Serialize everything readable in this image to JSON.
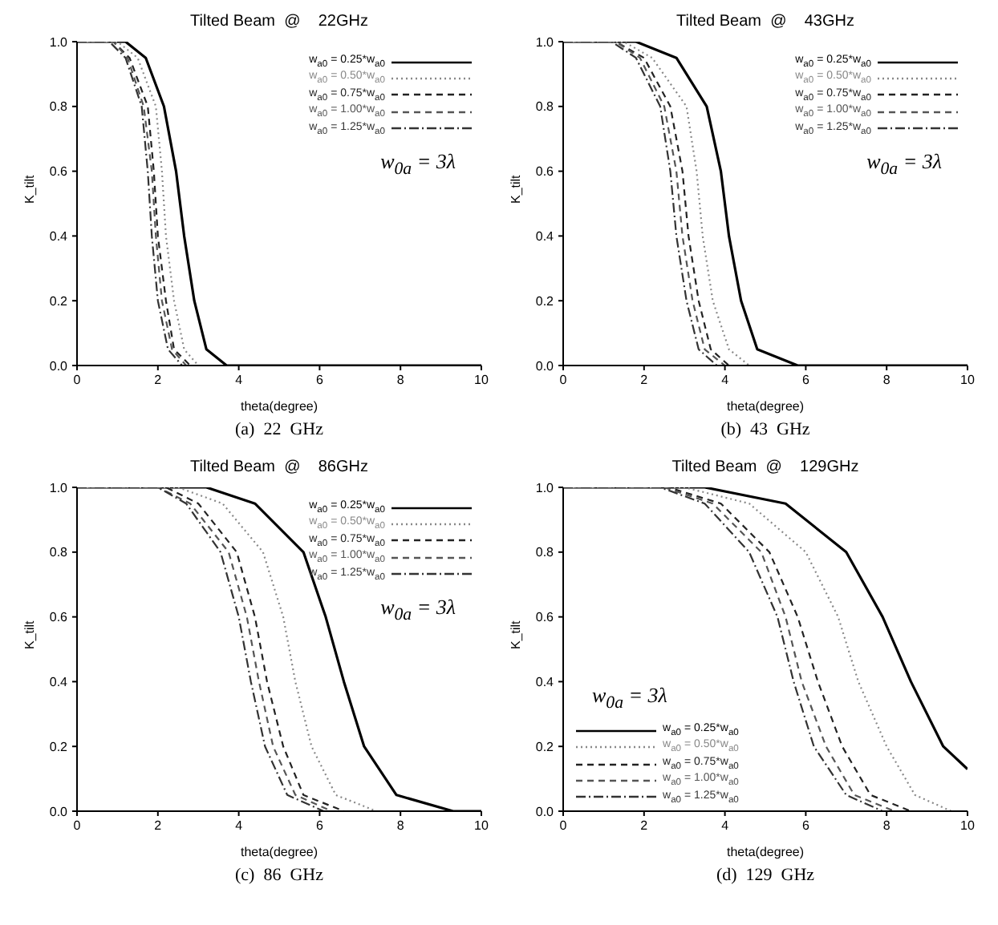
{
  "chart_data": [
    {
      "type": "line",
      "title": "Tilted Beam  @    22GHz",
      "xlabel": "theta(degree)",
      "ylabel": "K_tilt",
      "xlim": [
        0,
        10
      ],
      "ylim": [
        0,
        1.0
      ],
      "xticks": [
        0,
        2,
        4,
        6,
        8,
        10
      ],
      "yticks": [
        {
          "value": 0,
          "label": "0.0"
        },
        {
          "value": 0.2,
          "label": "0.2"
        },
        {
          "value": 0.4,
          "label": "0.4"
        },
        {
          "value": 0.6,
          "label": "0.6"
        },
        {
          "value": 0.8,
          "label": "0.8"
        },
        {
          "value": 1.0,
          "label": "1.0"
        }
      ],
      "legend": "top right",
      "annotations": [
        "w$_{0a}$ = 3λ",
        "(a)  22  GHz"
      ],
      "series": [
        {
          "name": "w$_{a0}$ = 0.25*w$_{a0}$",
          "color": "#000000",
          "line_style": "solid",
          "x": [
            0,
            1.2,
            1.7,
            2.15,
            2.45,
            2.65,
            2.9,
            3.2,
            3.7,
            10
          ],
          "values": [
            1.0,
            1.0,
            0.95,
            0.8,
            0.6,
            0.4,
            0.2,
            0.05,
            0.0,
            0.0
          ]
        },
        {
          "name": "w$_{a0}$ = 0.50*w$_{a0}$",
          "color": "#888888",
          "line_style": "dotted",
          "x": [
            0,
            1.0,
            1.5,
            1.95,
            2.1,
            2.2,
            2.4,
            2.65,
            3.0,
            10
          ],
          "values": [
            1.0,
            1.0,
            0.95,
            0.8,
            0.6,
            0.4,
            0.2,
            0.05,
            0.0,
            0.0
          ]
        },
        {
          "name": "w$_{a0}$ = 0.75*w$_{a0}$",
          "color": "#222222",
          "line_style": "dashed",
          "x": [
            0,
            0.9,
            1.3,
            1.75,
            1.9,
            2.0,
            2.2,
            2.4,
            2.8,
            10
          ],
          "values": [
            1.0,
            1.0,
            0.95,
            0.8,
            0.6,
            0.4,
            0.2,
            0.05,
            0.0,
            0.0
          ]
        },
        {
          "name": "w$_{a0}$ = 1.00*w$_{a0}$",
          "color": "#555555",
          "line_style": "dashed",
          "x": [
            0,
            0.9,
            1.25,
            1.65,
            1.85,
            1.95,
            2.1,
            2.35,
            2.7,
            10
          ],
          "values": [
            1.0,
            1.0,
            0.95,
            0.8,
            0.6,
            0.4,
            0.2,
            0.05,
            0.0,
            0.0
          ]
        },
        {
          "name": "w$_{a0}$ = 1.25*w$_{a0}$",
          "color": "#333333",
          "line_style": "dashdot",
          "x": [
            0,
            0.8,
            1.2,
            1.6,
            1.75,
            1.85,
            2.0,
            2.25,
            2.6,
            10
          ],
          "values": [
            1.0,
            1.0,
            0.95,
            0.8,
            0.6,
            0.4,
            0.2,
            0.05,
            0.0,
            0.0
          ]
        }
      ]
    },
    {
      "type": "line",
      "title": "Tilted Beam  @    43GHz",
      "xlabel": "theta(degree)",
      "ylabel": "K_tilt",
      "xlim": [
        0,
        10
      ],
      "ylim": [
        0,
        1.0
      ],
      "xticks": [
        0,
        2,
        4,
        6,
        8,
        10
      ],
      "yticks": [
        {
          "value": 0,
          "label": "0.0"
        },
        {
          "value": 0.2,
          "label": "0.2"
        },
        {
          "value": 0.4,
          "label": "0.4"
        },
        {
          "value": 0.6,
          "label": "0.6"
        },
        {
          "value": 0.8,
          "label": "0.8"
        },
        {
          "value": 1.0,
          "label": "1.0"
        }
      ],
      "legend": "top right",
      "annotations": [
        "w$_{0a}$ = 3λ",
        "(b)  43  GHz"
      ],
      "series": [
        {
          "name": "w$_{a0}$ = 0.25*w$_{a0}$",
          "color": "#000000",
          "line_style": "solid",
          "x": [
            0,
            1.8,
            2.8,
            3.55,
            3.9,
            4.1,
            4.4,
            4.8,
            5.8,
            10
          ],
          "values": [
            1.0,
            1.0,
            0.95,
            0.8,
            0.6,
            0.4,
            0.2,
            0.05,
            0.0,
            0.0
          ]
        },
        {
          "name": "w$_{a0}$ = 0.50*w$_{a0}$",
          "color": "#888888",
          "line_style": "dotted",
          "x": [
            0,
            1.5,
            2.2,
            3.05,
            3.3,
            3.45,
            3.7,
            4.1,
            4.6,
            10
          ],
          "values": [
            1.0,
            1.0,
            0.95,
            0.8,
            0.6,
            0.4,
            0.2,
            0.05,
            0.0,
            0.0
          ]
        },
        {
          "name": "w$_{a0}$ = 0.75*w$_{a0}$",
          "color": "#222222",
          "line_style": "dashed",
          "x": [
            0,
            1.3,
            2.0,
            2.65,
            2.95,
            3.1,
            3.35,
            3.65,
            4.1,
            10
          ],
          "values": [
            1.0,
            1.0,
            0.95,
            0.8,
            0.6,
            0.4,
            0.2,
            0.05,
            0.0,
            0.0
          ]
        },
        {
          "name": "w$_{a0}$ = 1.00*w$_{a0}$",
          "color": "#555555",
          "line_style": "dashed",
          "x": [
            0,
            1.3,
            1.9,
            2.5,
            2.8,
            2.95,
            3.2,
            3.5,
            4.0,
            10
          ],
          "values": [
            1.0,
            1.0,
            0.95,
            0.8,
            0.6,
            0.4,
            0.2,
            0.05,
            0.0,
            0.0
          ]
        },
        {
          "name": "w$_{a0}$ = 1.25*w$_{a0}$",
          "color": "#333333",
          "line_style": "dashdot",
          "x": [
            0,
            1.2,
            1.8,
            2.4,
            2.65,
            2.8,
            3.05,
            3.35,
            3.8,
            10
          ],
          "values": [
            1.0,
            1.0,
            0.95,
            0.8,
            0.6,
            0.4,
            0.2,
            0.05,
            0.0,
            0.0
          ]
        }
      ]
    },
    {
      "type": "line",
      "title": "Tilted Beam  @    86GHz",
      "xlabel": "theta(degree)",
      "ylabel": "K_tilt",
      "xlim": [
        0,
        10
      ],
      "ylim": [
        0,
        1.0
      ],
      "xticks": [
        0,
        2,
        4,
        6,
        8,
        10
      ],
      "yticks": [
        {
          "value": 0,
          "label": "0.0"
        },
        {
          "value": 0.2,
          "label": "0.2"
        },
        {
          "value": 0.4,
          "label": "0.4"
        },
        {
          "value": 0.6,
          "label": "0.6"
        },
        {
          "value": 0.8,
          "label": "0.8"
        },
        {
          "value": 1.0,
          "label": "1.0"
        }
      ],
      "legend": "top right",
      "annotations": [
        "w$_{0a}$ = 3λ",
        "(c)  86  GHz"
      ],
      "series": [
        {
          "name": "w$_{a0}$ = 0.25*w$_{a0}$",
          "color": "#000000",
          "line_style": "solid",
          "x": [
            0,
            3.2,
            4.4,
            5.6,
            6.15,
            6.6,
            7.1,
            7.9,
            9.3,
            10
          ],
          "values": [
            1.0,
            1.0,
            0.95,
            0.8,
            0.6,
            0.4,
            0.2,
            0.05,
            0.0,
            0.0
          ]
        },
        {
          "name": "w$_{a0}$ = 0.50*w$_{a0}$",
          "color": "#888888",
          "line_style": "dotted",
          "x": [
            0,
            2.5,
            3.6,
            4.6,
            5.1,
            5.4,
            5.8,
            6.4,
            7.4,
            10
          ],
          "values": [
            1.0,
            1.0,
            0.95,
            0.8,
            0.6,
            0.4,
            0.2,
            0.05,
            0.0,
            0.0
          ]
        },
        {
          "name": "w$_{a0}$ = 0.75*w$_{a0}$",
          "color": "#222222",
          "line_style": "dashed",
          "x": [
            0,
            2.2,
            3.0,
            3.95,
            4.4,
            4.7,
            5.1,
            5.6,
            6.6,
            10
          ],
          "values": [
            1.0,
            1.0,
            0.95,
            0.8,
            0.6,
            0.4,
            0.2,
            0.05,
            0.0,
            0.0
          ]
        },
        {
          "name": "w$_{a0}$ = 1.00*w$_{a0}$",
          "color": "#555555",
          "line_style": "dashed",
          "x": [
            0,
            2.0,
            2.8,
            3.75,
            4.2,
            4.5,
            4.85,
            5.4,
            6.3,
            10
          ],
          "values": [
            1.0,
            1.0,
            0.95,
            0.8,
            0.6,
            0.4,
            0.2,
            0.05,
            0.0,
            0.0
          ]
        },
        {
          "name": "w$_{a0}$ = 1.25*w$_{a0}$",
          "color": "#333333",
          "line_style": "dashdot",
          "x": [
            0,
            2.0,
            2.7,
            3.55,
            4.0,
            4.3,
            4.65,
            5.2,
            6.1,
            10
          ],
          "values": [
            1.0,
            1.0,
            0.95,
            0.8,
            0.6,
            0.4,
            0.2,
            0.05,
            0.0,
            0.0
          ]
        }
      ]
    },
    {
      "type": "line",
      "title": "Tilted Beam  @    129GHz",
      "xlabel": "theta(degree)",
      "ylabel": "K_tilt",
      "xlim": [
        0,
        10
      ],
      "ylim": [
        0,
        1.0
      ],
      "xticks": [
        0,
        2,
        4,
        6,
        8,
        10
      ],
      "yticks": [
        {
          "value": 0,
          "label": "0.0"
        },
        {
          "value": 0.2,
          "label": "0.2"
        },
        {
          "value": 0.4,
          "label": "0.4"
        },
        {
          "value": 0.6,
          "label": "0.6"
        },
        {
          "value": 0.8,
          "label": "0.8"
        },
        {
          "value": 1.0,
          "label": "1.0"
        }
      ],
      "legend": "bottom left",
      "annotations": [
        "w$_{0a}$ = 3λ",
        "(d)  129  GHz"
      ],
      "series": [
        {
          "name": "w$_{a0}$ = 0.25*w$_{a0}$",
          "color": "#000000",
          "line_style": "solid",
          "x": [
            0,
            3.5,
            5.5,
            7.0,
            7.9,
            8.6,
            9.4,
            10
          ],
          "values": [
            1.0,
            1.0,
            0.95,
            0.8,
            0.6,
            0.4,
            0.2,
            0.13
          ]
        },
        {
          "name": "w$_{a0}$ = 0.50*w$_{a0}$",
          "color": "#888888",
          "line_style": "dotted",
          "x": [
            0,
            3.0,
            4.6,
            6.0,
            6.8,
            7.3,
            8.0,
            8.7,
            9.6,
            10
          ],
          "values": [
            1.0,
            1.0,
            0.95,
            0.8,
            0.6,
            0.4,
            0.2,
            0.05,
            0.0,
            0.0
          ]
        },
        {
          "name": "w$_{a0}$ = 0.75*w$_{a0}$",
          "color": "#222222",
          "line_style": "dashed",
          "x": [
            0,
            2.6,
            3.9,
            5.1,
            5.8,
            6.3,
            6.9,
            7.6,
            8.6,
            10
          ],
          "values": [
            1.0,
            1.0,
            0.95,
            0.8,
            0.6,
            0.4,
            0.2,
            0.05,
            0.0,
            0.0
          ]
        },
        {
          "name": "w$_{a0}$ = 1.00*w$_{a0}$",
          "color": "#555555",
          "line_style": "dashed",
          "x": [
            0,
            2.5,
            3.7,
            4.9,
            5.5,
            5.9,
            6.5,
            7.2,
            8.2,
            10
          ],
          "values": [
            1.0,
            1.0,
            0.95,
            0.8,
            0.6,
            0.4,
            0.2,
            0.05,
            0.0,
            0.0
          ]
        },
        {
          "name": "w$_{a0}$ = 1.25*w$_{a0}$",
          "color": "#333333",
          "line_style": "dashdot",
          "x": [
            0,
            2.4,
            3.5,
            4.6,
            5.3,
            5.7,
            6.2,
            7.0,
            7.9,
            10
          ],
          "values": [
            1.0,
            1.0,
            0.95,
            0.8,
            0.6,
            0.4,
            0.2,
            0.05,
            0.0,
            0.0
          ]
        }
      ]
    }
  ]
}
